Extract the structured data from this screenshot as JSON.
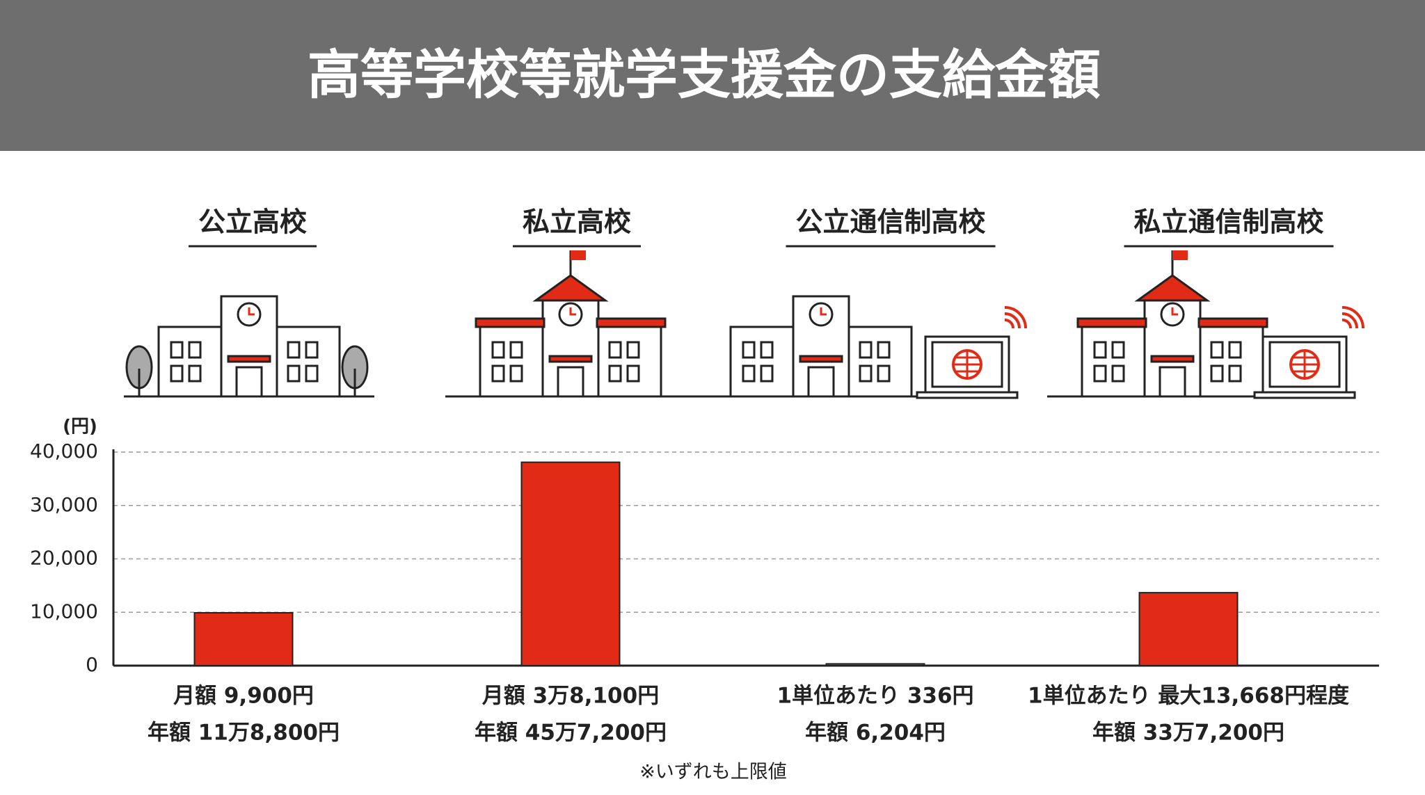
{
  "chart_data": {
    "type": "bar",
    "title": "高等学校等就学支援金の支給金額",
    "y_label": "(円)",
    "categories": [
      "公立高校",
      "私立高校",
      "公立通信制高校",
      "私立通信制高校"
    ],
    "values": [
      9900,
      38100,
      336,
      13668
    ],
    "value_labels": [
      "月額 9,900円",
      "月額 3万8,100円",
      "1単位あたり 336円",
      "1単位あたり 最大13,668円程度"
    ],
    "annotations": [
      "年額 11万8,800円",
      "年額 45万7,200円",
      "年額 6,204円",
      "年額 33万7,200円"
    ],
    "footnote": "※いずれも上限値",
    "color": "#e12b16",
    "ylim": [
      0,
      40000
    ],
    "yticks": [
      0,
      {
        "value": 10000,
        "label": "10,000"
      },
      {
        "value": 20000,
        "label": "20,000"
      },
      {
        "value": 30000,
        "label": "30,000"
      },
      {
        "value": 40000,
        "label": "40,000"
      }
    ],
    "grid": true
  }
}
